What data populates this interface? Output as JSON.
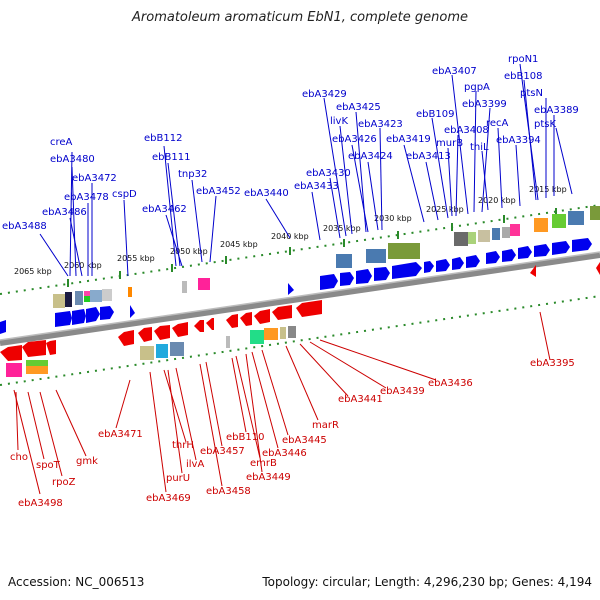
{
  "title": "Aromatoleum aromaticum EbN1, complete genome",
  "footer": {
    "accession": "Accession: NC_006513",
    "summary": "Topology: circular; Length: 4,296,230 bp; Genes: 4,194"
  },
  "colors": {
    "forward": "#0000ee",
    "reverse": "#ee0000",
    "backbone": "#888888",
    "dots": "#228822"
  },
  "ticks": [
    "2065 kbp",
    "2060 kbp",
    "2055 kbp",
    "2050 kbp",
    "2045 kbp",
    "2040 kbp",
    "2035 kbp",
    "2030 kbp",
    "2025 kbp",
    "2020 kbp",
    "2015 kbp"
  ],
  "forward_labels": [
    "ebA3488",
    "creA",
    "ebA3480",
    "ebA3486",
    "ebA3478",
    "ebA3472",
    "cspD",
    "ebB112",
    "ebB111",
    "ebA3462",
    "tnp32",
    "ebA3452",
    "ebA3440",
    "ebA3433",
    "ebA3430",
    "ebA3429",
    "livK",
    "ebA3425",
    "ebA3426",
    "ebA3423",
    "ebA3424",
    "ebA3419",
    "ebA3413",
    "ebB109",
    "murB",
    "ebA3408",
    "ebA3407",
    "pgpA",
    "ebA3399",
    "thiL",
    "recA",
    "ebA3394",
    "rpoN1",
    "ebB108",
    "ptsN",
    "ebA3389",
    "ptsK"
  ],
  "reverse_labels": [
    "cho",
    "spoT",
    "rpoZ",
    "gmk",
    "ebA3498",
    "ebA3471",
    "ebA3469",
    "thrH",
    "purU",
    "ilvA",
    "ebA3458",
    "ebA3457",
    "ebB110",
    "emrB",
    "ebA3449",
    "ebA3446",
    "ebA3445",
    "marR",
    "ebA3441",
    "ebA3439",
    "ebA3436",
    "ebA3395"
  ]
}
